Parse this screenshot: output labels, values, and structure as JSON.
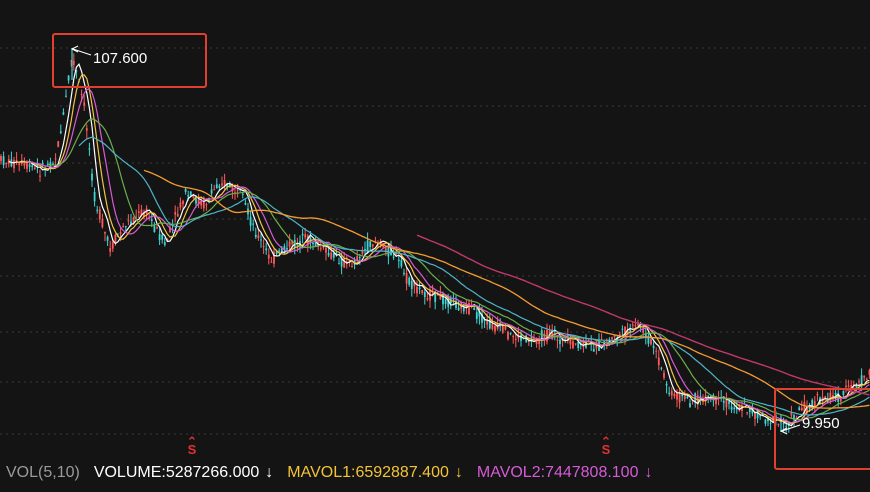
{
  "chart": {
    "high_label": "107.600",
    "low_label": "9.950",
    "signal_marker": "S",
    "colors": {
      "background": "#141414",
      "grid": "#3a3a3a",
      "up": "#ff5a5a",
      "down": "#3ed6d6",
      "ma_white": "#ffffff",
      "ma_yellow": "#f5c342",
      "ma_magenta": "#d65bd6",
      "ma_green": "#6ab04c",
      "ma_cyan": "#4fb5c8",
      "ma_orange": "#f39c33",
      "ma_pink": "#c0396b",
      "annotation": "#e0402f"
    }
  },
  "volume_bar": {
    "title": "VOL(5,10)",
    "volume": "VOLUME:5287266.000",
    "volume_arrow": "↓",
    "mavol1": "MAVOL1:6592887.400",
    "mavol1_arrow": "↓",
    "mavol2": "MAVOL2:7447808.100",
    "mavol2_arrow": "↓"
  }
}
